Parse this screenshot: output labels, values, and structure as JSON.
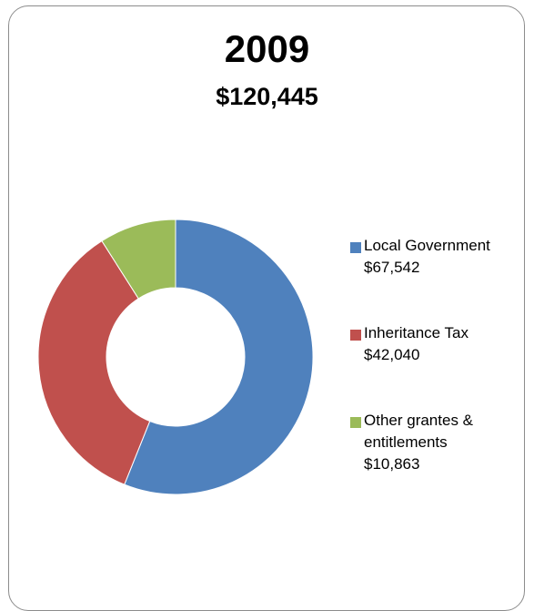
{
  "chart_data": {
    "type": "pie",
    "variant": "donut",
    "title": "2009",
    "subtitle": "$120,445",
    "legend_position": "right",
    "slices": [
      {
        "label": "Local Government",
        "value_label": "$67,542",
        "value": 67542,
        "color": "#4F81BD"
      },
      {
        "label": "Inheritance Tax",
        "value_label": "$42,040",
        "value": 42040,
        "color": "#C0504D"
      },
      {
        "label_lines": [
          "Other grantes &",
          "entitlements"
        ],
        "label": "Other grantes & entitlements",
        "value_label": "$10,863",
        "value": 10863,
        "color": "#9BBB59"
      }
    ]
  }
}
